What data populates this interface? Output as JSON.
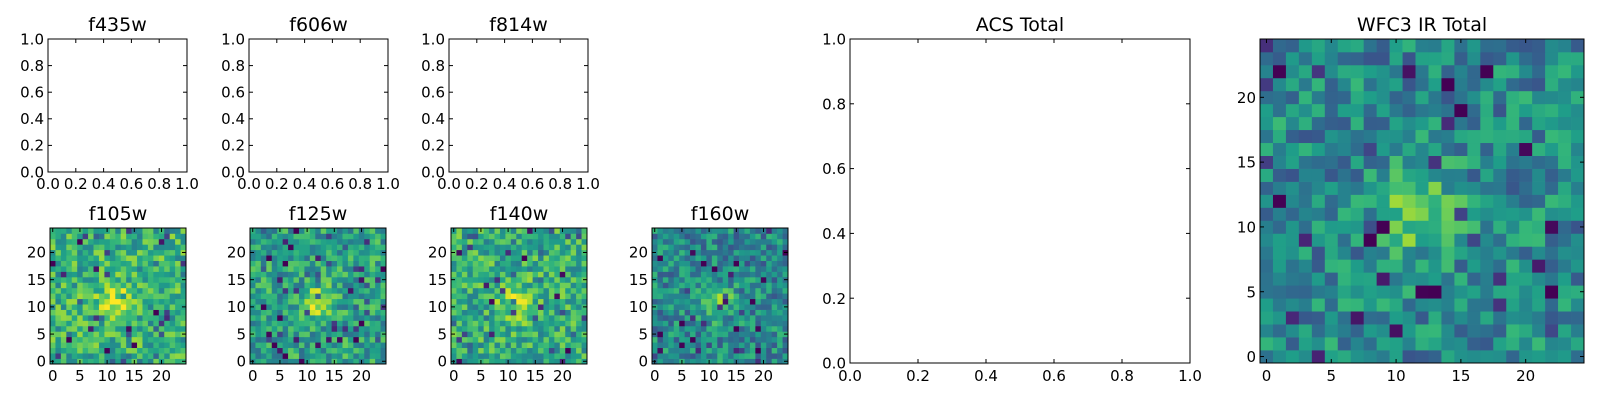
{
  "chart_data": [
    {
      "title": "f435w",
      "type": "heatmap",
      "empty": true,
      "xlim": [
        0,
        1
      ],
      "ylim": [
        0,
        1
      ],
      "xticks": [
        "0.0",
        "0.2",
        "0.4",
        "0.6",
        "0.8",
        "1.0"
      ],
      "yticks": [
        "0.0",
        "0.2",
        "0.4",
        "0.6",
        "0.8",
        "1.0"
      ],
      "xlabel": "",
      "ylabel": ""
    },
    {
      "title": "f606w",
      "type": "heatmap",
      "empty": true,
      "xlim": [
        0,
        1
      ],
      "ylim": [
        0,
        1
      ],
      "xticks": [
        "0.0",
        "0.2",
        "0.4",
        "0.6",
        "0.8",
        "1.0"
      ],
      "yticks": [
        "0.0",
        "0.2",
        "0.4",
        "0.6",
        "0.8",
        "1.0"
      ],
      "xlabel": "",
      "ylabel": ""
    },
    {
      "title": "f814w",
      "type": "heatmap",
      "empty": true,
      "xlim": [
        0,
        1
      ],
      "ylim": [
        0,
        1
      ],
      "xticks": [
        "0.0",
        "0.2",
        "0.4",
        "0.6",
        "0.8",
        "1.0"
      ],
      "yticks": [
        "0.0",
        "0.2",
        "0.4",
        "0.6",
        "0.8",
        "1.0"
      ],
      "xlabel": "",
      "ylabel": ""
    },
    {
      "title": "f105w",
      "type": "heatmap",
      "colormap": "viridis",
      "grid_size": [
        25,
        25
      ],
      "xlim": [
        -0.5,
        24.5
      ],
      "ylim": [
        -0.5,
        24.5
      ],
      "xticks": [
        "0",
        "5",
        "10",
        "15",
        "20"
      ],
      "yticks": [
        "0",
        "5",
        "10",
        "15",
        "20"
      ],
      "xlabel": "",
      "ylabel": ""
    },
    {
      "title": "f125w",
      "type": "heatmap",
      "colormap": "viridis",
      "grid_size": [
        25,
        25
      ],
      "xlim": [
        -0.5,
        24.5
      ],
      "ylim": [
        -0.5,
        24.5
      ],
      "xticks": [
        "0",
        "5",
        "10",
        "15",
        "20"
      ],
      "yticks": [
        "0",
        "5",
        "10",
        "15",
        "20"
      ],
      "xlabel": "",
      "ylabel": ""
    },
    {
      "title": "f140w",
      "type": "heatmap",
      "colormap": "viridis",
      "grid_size": [
        25,
        25
      ],
      "xlim": [
        -0.5,
        24.5
      ],
      "ylim": [
        -0.5,
        24.5
      ],
      "xticks": [
        "0",
        "5",
        "10",
        "15",
        "20"
      ],
      "yticks": [
        "0",
        "5",
        "10",
        "15",
        "20"
      ],
      "xlabel": "",
      "ylabel": ""
    },
    {
      "title": "f160w",
      "type": "heatmap",
      "colormap": "viridis",
      "grid_size": [
        25,
        25
      ],
      "xlim": [
        -0.5,
        24.5
      ],
      "ylim": [
        -0.5,
        24.5
      ],
      "xticks": [
        "0",
        "5",
        "10",
        "15",
        "20"
      ],
      "yticks": [
        "0",
        "5",
        "10",
        "15",
        "20"
      ],
      "xlabel": "",
      "ylabel": ""
    },
    {
      "title": "ACS Total",
      "type": "heatmap",
      "empty": true,
      "xlim": [
        0,
        1
      ],
      "ylim": [
        0,
        1
      ],
      "xticks": [
        "0.0",
        "0.2",
        "0.4",
        "0.6",
        "0.8",
        "1.0"
      ],
      "yticks": [
        "0.0",
        "0.2",
        "0.4",
        "0.6",
        "0.8",
        "1.0"
      ],
      "xlabel": "",
      "ylabel": ""
    },
    {
      "title": "WFC3 IR Total",
      "type": "heatmap",
      "colormap": "viridis",
      "grid_size": [
        25,
        25
      ],
      "xlim": [
        -0.5,
        24.5
      ],
      "ylim": [
        -0.5,
        24.5
      ],
      "xticks": [
        "0",
        "5",
        "10",
        "15",
        "20"
      ],
      "yticks": [
        "0",
        "5",
        "10",
        "15",
        "20"
      ],
      "xlabel": "",
      "ylabel": ""
    }
  ]
}
